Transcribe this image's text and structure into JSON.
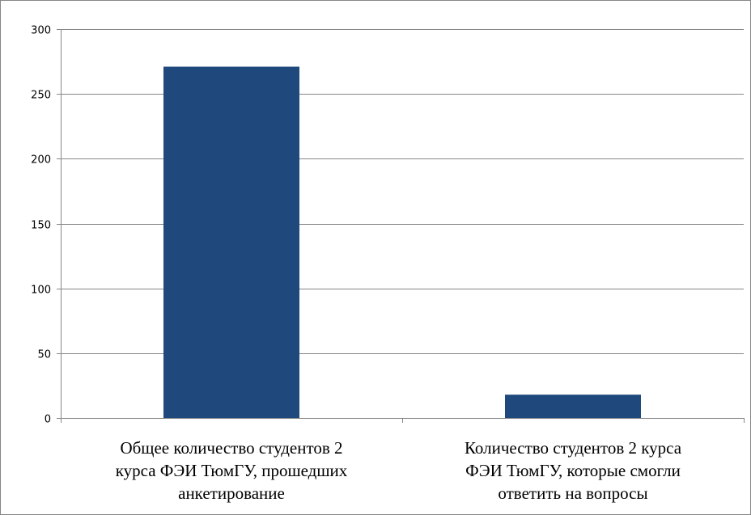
{
  "chart_data": {
    "type": "bar",
    "categories": [
      [
        "Общее количество студентов 2",
        "курса ФЭИ ТюмГУ, прошедших",
        "анкетирование"
      ],
      [
        "Количество студентов 2 курса",
        "ФЭИ ТюмГУ, которые смогли",
        "ответить на вопросы"
      ]
    ],
    "values": [
      271,
      18
    ],
    "yticks": [
      0,
      50,
      100,
      150,
      200,
      250,
      300
    ],
    "ylim": [
      0,
      300
    ],
    "title": "",
    "xlabel": "",
    "ylabel": "",
    "grid": true,
    "legend": "none",
    "bar_color": "#1F497D"
  }
}
